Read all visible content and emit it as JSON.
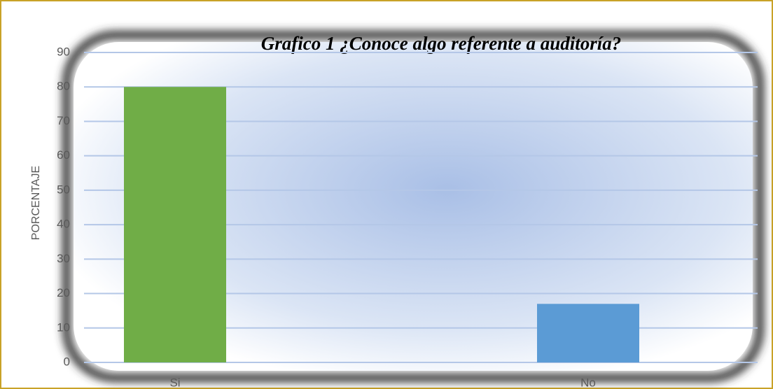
{
  "chart_data": {
    "type": "bar",
    "title": "Grafico 1 ¿Conoce algo referente a auditoría?",
    "y_label": "PORCENTAJE",
    "categories": [
      "Si",
      "No"
    ],
    "series": [
      {
        "name": "PORCENTAJE",
        "values": [
          80,
          17
        ]
      }
    ],
    "colors": [
      "#70ad47",
      "#5b9bd5"
    ],
    "ylim": [
      0,
      90
    ],
    "yticks": [
      0,
      10,
      20,
      30,
      40,
      50,
      60,
      70,
      80,
      90
    ],
    "grid": true
  }
}
